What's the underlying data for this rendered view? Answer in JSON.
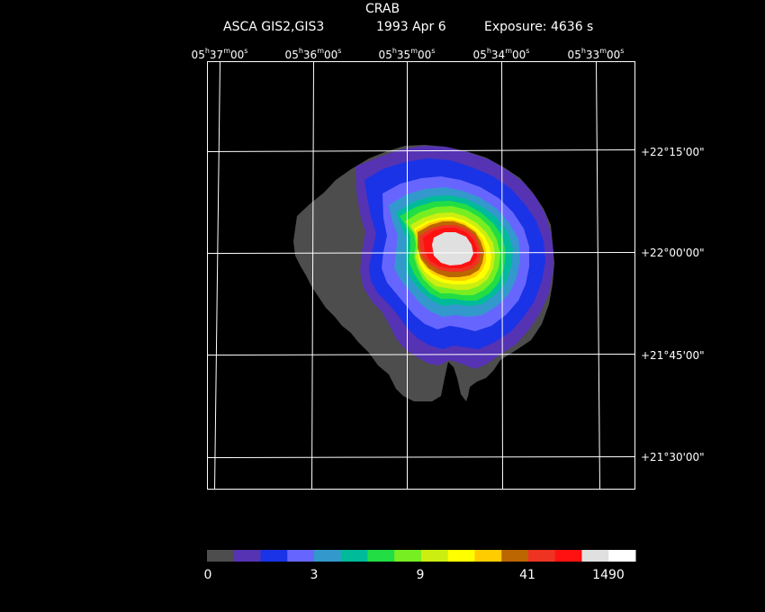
{
  "header": {
    "object": "CRAB",
    "instrument": "ASCA GIS2,GIS3",
    "date": "1993 Apr  6",
    "exposure": "Exposure: 4636 s"
  },
  "axes": {
    "ra_labels": [
      {
        "h": "05",
        "m": "37",
        "s": "00"
      },
      {
        "h": "05",
        "m": "36",
        "s": "00"
      },
      {
        "h": "05",
        "m": "35",
        "s": "00"
      },
      {
        "h": "05",
        "m": "34",
        "s": "00"
      },
      {
        "h": "05",
        "m": "33",
        "s": "00"
      }
    ],
    "dec_labels": [
      "+22°15'00\"",
      "+22°00'00\"",
      "+21°45'00\"",
      "+21°30'00\""
    ]
  },
  "colorbar": {
    "colors": [
      "#4d4d4d",
      "#5533b3",
      "#1a33e6",
      "#6666ff",
      "#3399cc",
      "#00bb99",
      "#22dd44",
      "#77ee22",
      "#ccee11",
      "#ffff00",
      "#ffcc00",
      "#bb6600",
      "#ee3322",
      "#ff1111",
      "#e0e0e0",
      "#ffffff"
    ],
    "labels": [
      "0",
      "3",
      "9",
      "41",
      "1490"
    ]
  }
}
